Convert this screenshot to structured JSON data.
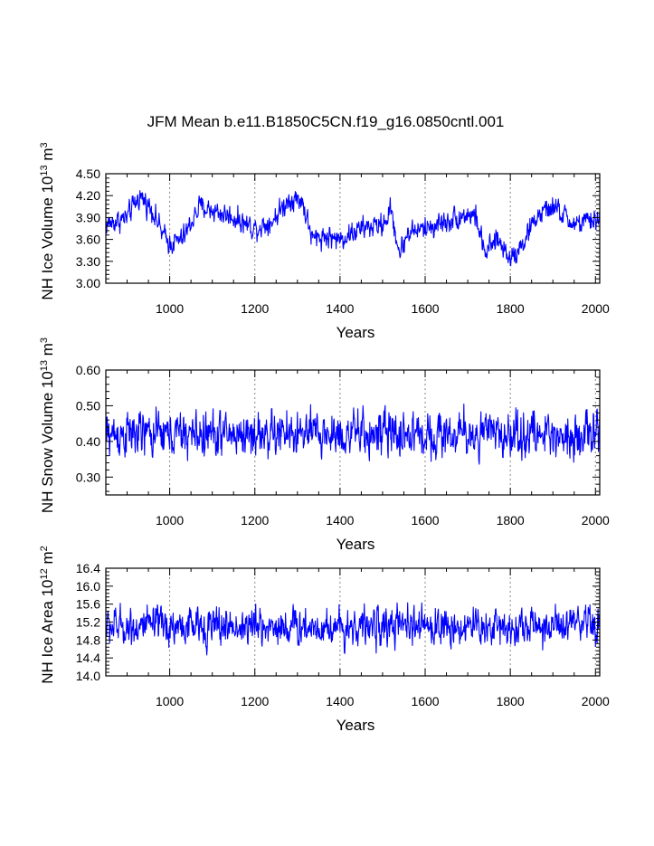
{
  "title": "JFM Mean b.e11.B1850C5CN.f19_g16.0850cntl.001",
  "line_color": "#0000ff",
  "chart_data": [
    {
      "type": "line",
      "title": "NH Ice Volume",
      "ylabel": {
        "main": "NH Ice Volume 10",
        "exp": "13",
        "unit": " m",
        "unit_exp": "3"
      },
      "xlabel": "Years",
      "xlim": [
        850,
        2010
      ],
      "ylim": [
        3.0,
        4.5
      ],
      "xticks": [
        "1000",
        "1200",
        "1400",
        "1600",
        "1800",
        "2000"
      ],
      "yticks": [
        "3.00",
        "3.30",
        "3.60",
        "3.90",
        "4.20",
        "4.50"
      ],
      "grid": "dotted vertical at x ticks",
      "series_shape": {
        "anchors": [
          [
            850,
            3.8
          ],
          [
            900,
            3.9
          ],
          [
            930,
            4.2
          ],
          [
            960,
            4.0
          ],
          [
            985,
            3.65
          ],
          [
            1000,
            3.55
          ],
          [
            1030,
            3.6
          ],
          [
            1070,
            4.05
          ],
          [
            1100,
            4.0
          ],
          [
            1150,
            3.9
          ],
          [
            1200,
            3.75
          ],
          [
            1240,
            3.85
          ],
          [
            1280,
            4.15
          ],
          [
            1310,
            4.15
          ],
          [
            1335,
            3.6
          ],
          [
            1360,
            3.65
          ],
          [
            1400,
            3.6
          ],
          [
            1450,
            3.75
          ],
          [
            1500,
            3.8
          ],
          [
            1520,
            4.0
          ],
          [
            1540,
            3.4
          ],
          [
            1560,
            3.7
          ],
          [
            1600,
            3.75
          ],
          [
            1650,
            3.85
          ],
          [
            1700,
            3.95
          ],
          [
            1720,
            3.9
          ],
          [
            1740,
            3.4
          ],
          [
            1770,
            3.6
          ],
          [
            1800,
            3.35
          ],
          [
            1830,
            3.55
          ],
          [
            1860,
            3.9
          ],
          [
            1900,
            4.05
          ],
          [
            1950,
            3.8
          ],
          [
            1990,
            3.85
          ],
          [
            2010,
            3.9
          ]
        ],
        "noise": 0.11,
        "clip": [
          3.22,
          4.46
        ]
      }
    },
    {
      "type": "line",
      "title": "NH Snow Volume",
      "ylabel": {
        "main": "NH Snow Volume 10",
        "exp": "13",
        "unit": " m",
        "unit_exp": "3"
      },
      "xlabel": "Years",
      "xlim": [
        850,
        2010
      ],
      "ylim": [
        0.25,
        0.6
      ],
      "xticks": [
        "1000",
        "1200",
        "1400",
        "1600",
        "1800",
        "2000"
      ],
      "yticks": [
        "0.30",
        "0.40",
        "0.50",
        "0.60"
      ],
      "grid": "dotted vertical at x ticks",
      "series_shape": {
        "anchors": [
          [
            850,
            0.42
          ],
          [
            2010,
            0.42
          ]
        ],
        "noise": 0.045,
        "clip": [
          0.3,
          0.575
        ]
      }
    },
    {
      "type": "line",
      "title": "NH Ice Area",
      "ylabel": {
        "main": "NH Ice Area 10",
        "exp": "12",
        "unit": " m",
        "unit_exp": "2"
      },
      "xlabel": "Years",
      "xlim": [
        850,
        2010
      ],
      "ylim": [
        14.0,
        16.4
      ],
      "xticks": [
        "1000",
        "1200",
        "1400",
        "1600",
        "1800",
        "2000"
      ],
      "yticks": [
        "14.0",
        "14.4",
        "14.8",
        "15.2",
        "15.6",
        "16.0",
        "16.4"
      ],
      "grid": "dotted vertical at x ticks",
      "series_shape": {
        "anchors": [
          [
            850,
            15.1
          ],
          [
            2010,
            15.1
          ]
        ],
        "noise": 0.3,
        "clip": [
          14.2,
          16.27
        ]
      }
    }
  ]
}
